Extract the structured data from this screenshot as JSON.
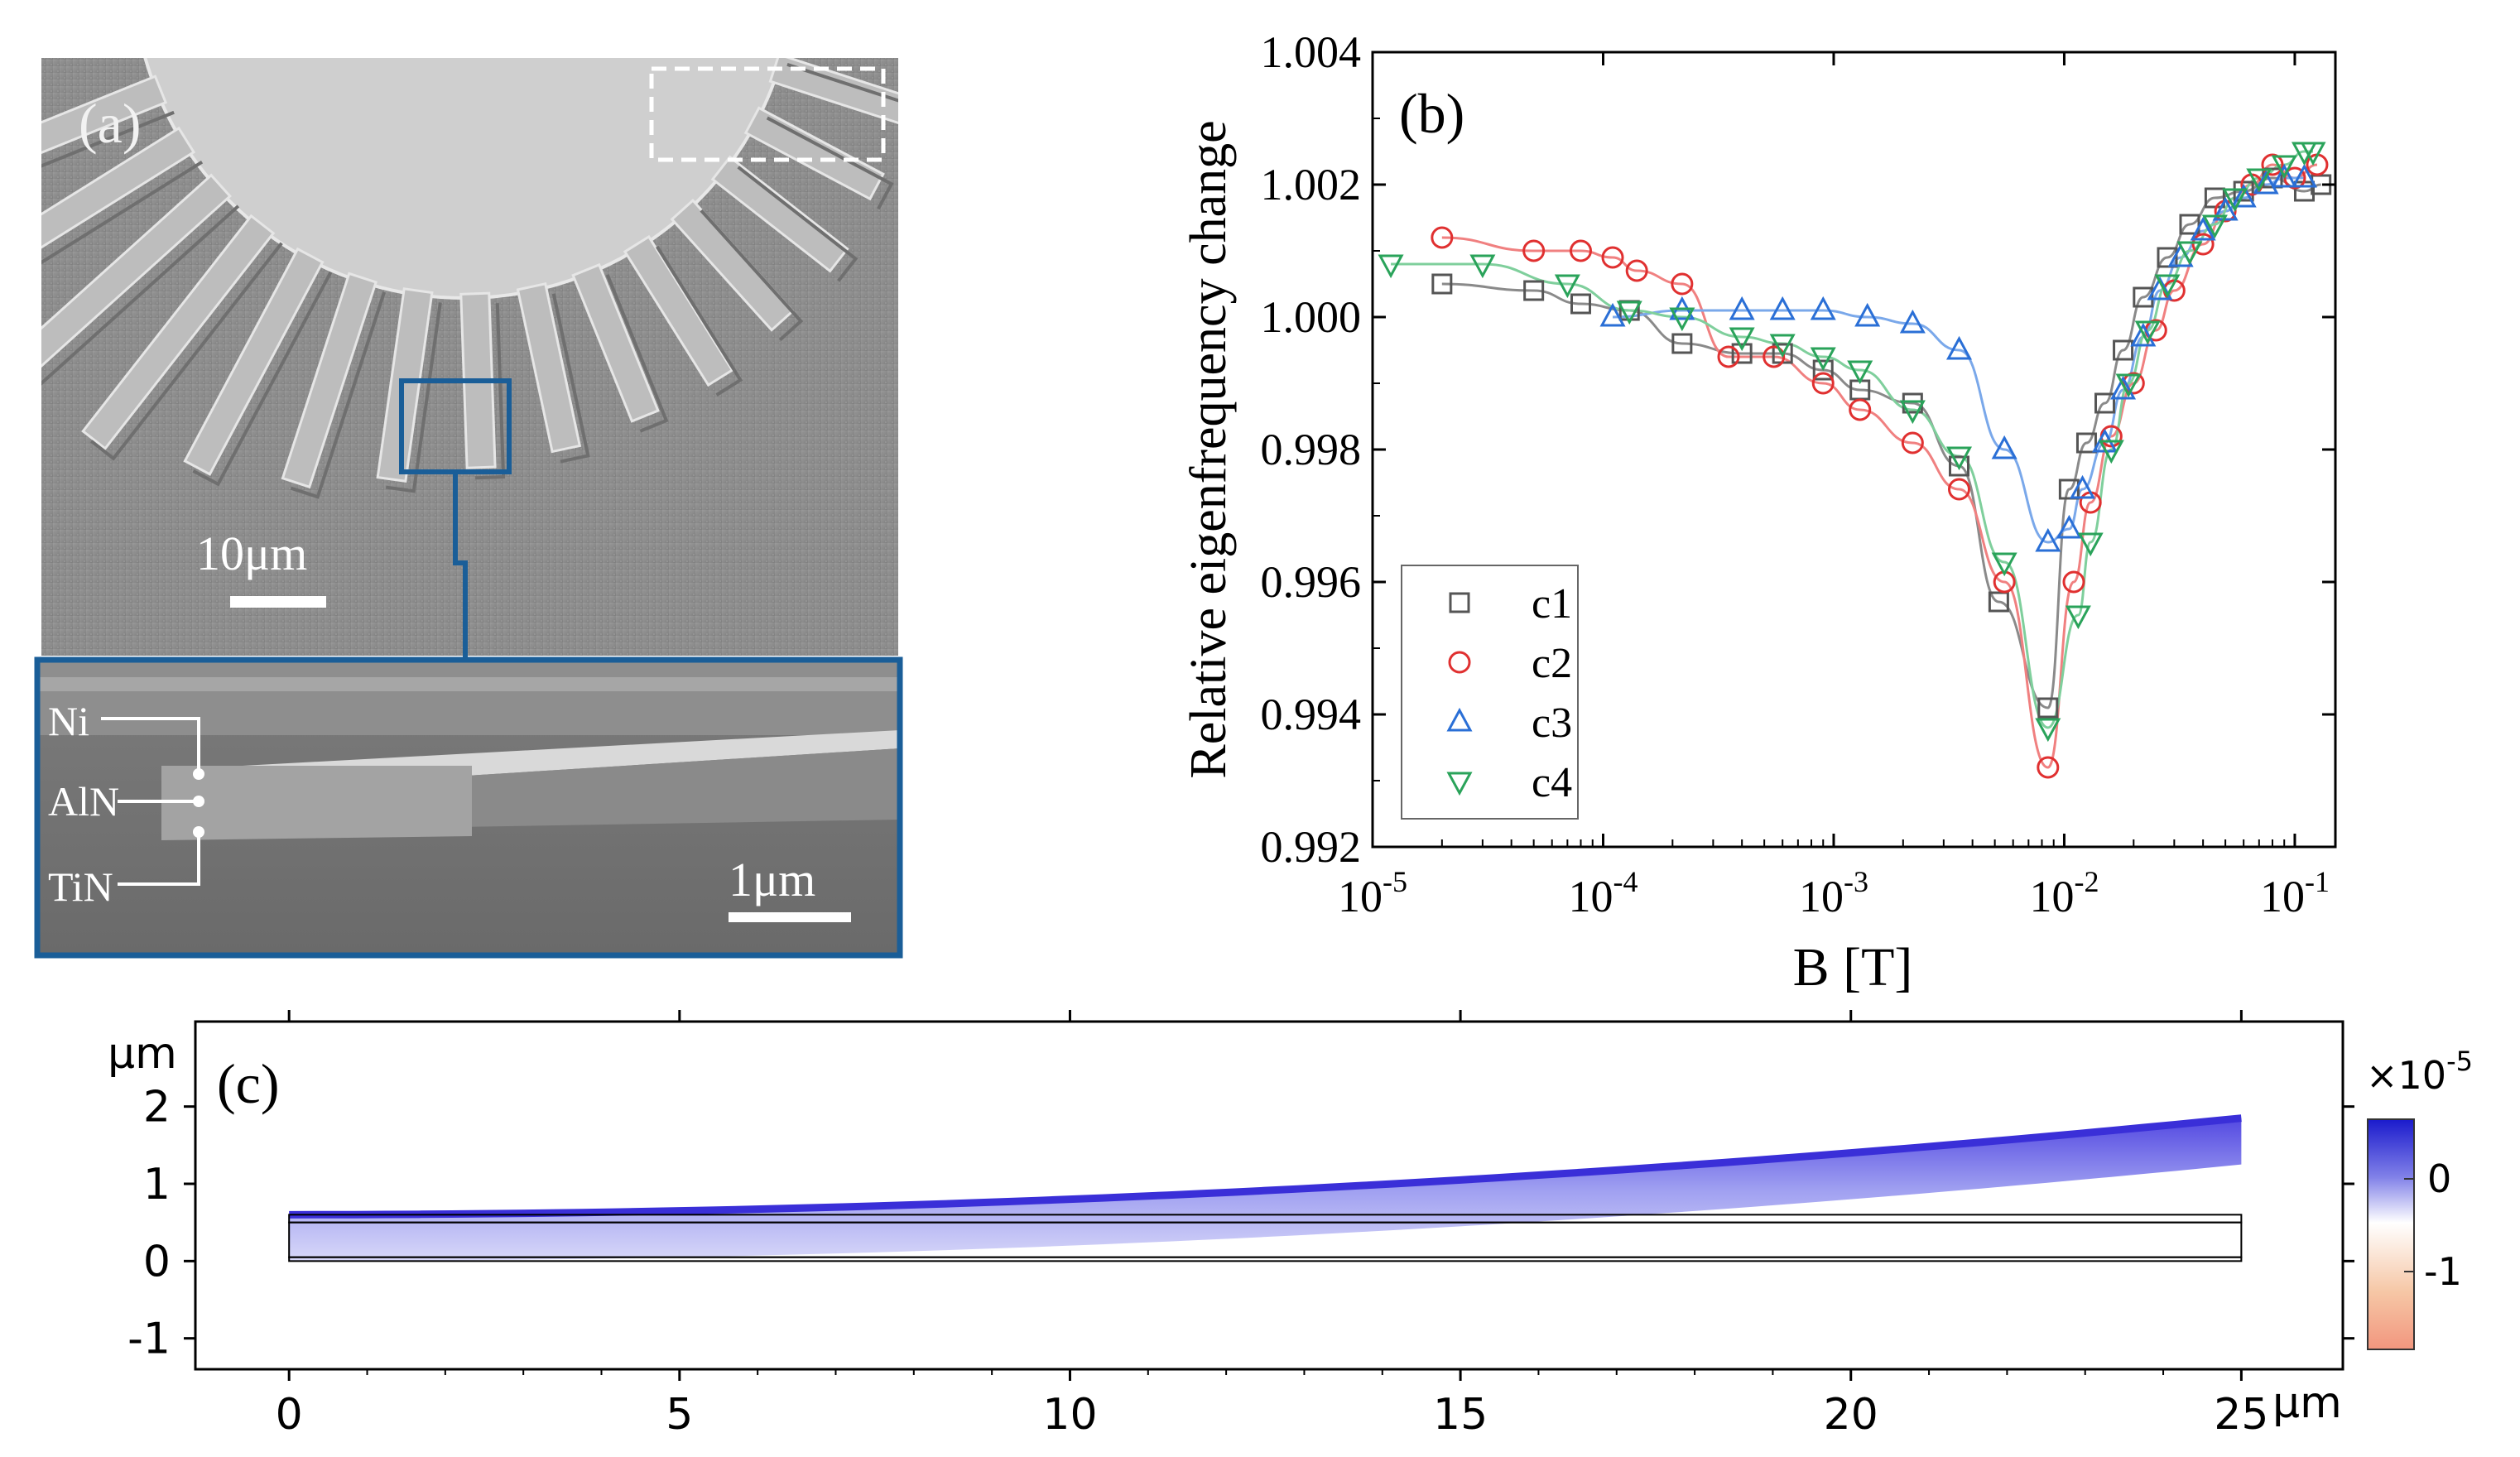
{
  "panel_a": {
    "label": "(a)",
    "scale_main": "10μm",
    "scale_inset": "1μm",
    "layers": [
      "Ni",
      "AlN",
      "TiN"
    ]
  },
  "chart_data": [
    {
      "panel": "(b)",
      "type": "scatter",
      "title": "",
      "xlabel": "B [T]",
      "ylabel": "Relative eigenfrequency change",
      "xscale": "log",
      "xlim": [
        1e-05,
        0.15
      ],
      "ylim": [
        0.992,
        1.004
      ],
      "xticks": [
        {
          "value": 1e-05,
          "base": "10",
          "exp": "-5"
        },
        {
          "value": 0.0001,
          "base": "10",
          "exp": "-4"
        },
        {
          "value": 0.001,
          "base": "10",
          "exp": "-3"
        },
        {
          "value": 0.01,
          "base": "10",
          "exp": "-2"
        },
        {
          "value": 0.1,
          "base": "10",
          "exp": "-1"
        }
      ],
      "yticks": [
        {
          "value": 0.992,
          "label": "0.992"
        },
        {
          "value": 0.994,
          "label": "0.994"
        },
        {
          "value": 0.996,
          "label": "0.996"
        },
        {
          "value": 0.998,
          "label": "0.998"
        },
        {
          "value": 1.0,
          "label": "1.000"
        },
        {
          "value": 1.002,
          "label": "1.002"
        },
        {
          "value": 1.004,
          "label": "1.004"
        }
      ],
      "legend": "bottom-left",
      "series": [
        {
          "name": "c1",
          "marker": "square",
          "color": "#555555",
          "line": "#8a8a8a",
          "x": [
            2e-05,
            5e-05,
            8e-05,
            0.00013,
            0.00022,
            0.0004,
            0.0006,
            0.0009,
            0.0013,
            0.0022,
            0.0035,
            0.0052,
            0.0085,
            0.0105,
            0.0125,
            0.015,
            0.018,
            0.022,
            0.028,
            0.035,
            0.045,
            0.06,
            0.08,
            0.11,
            0.13
          ],
          "y": [
            1.0005,
            1.0004,
            1.0002,
            1.0001,
            0.9996,
            0.99945,
            0.99945,
            0.9992,
            0.9989,
            0.9987,
            0.99775,
            0.9957,
            0.9941,
            0.9974,
            0.9981,
            0.9987,
            0.9995,
            1.0003,
            1.0009,
            1.0014,
            1.0018,
            1.0019,
            1.0021,
            1.0019,
            1.002
          ]
        },
        {
          "name": "c2",
          "marker": "circle",
          "color": "#e03030",
          "line": "#f08080",
          "x": [
            2e-05,
            5e-05,
            8e-05,
            0.00011,
            0.00014,
            0.00022,
            0.00035,
            0.00055,
            0.0009,
            0.0013,
            0.0022,
            0.0035,
            0.0055,
            0.0085,
            0.011,
            0.013,
            0.016,
            0.02,
            0.025,
            0.03,
            0.04,
            0.05,
            0.065,
            0.08,
            0.1,
            0.125
          ],
          "y": [
            1.0012,
            1.001,
            1.001,
            1.0009,
            1.0007,
            1.0005,
            0.9994,
            0.9994,
            0.999,
            0.9986,
            0.9981,
            0.9974,
            0.996,
            0.9932,
            0.996,
            0.9972,
            0.9982,
            0.999,
            0.9998,
            1.0004,
            1.0011,
            1.0016,
            1.002,
            1.0023,
            1.0021,
            1.0023
          ]
        },
        {
          "name": "c3",
          "marker": "triangle-up",
          "color": "#2a6fd6",
          "line": "#7aa8ea",
          "x": [
            0.00011,
            0.00022,
            0.0004,
            0.0006,
            0.0009,
            0.0014,
            0.0022,
            0.0035,
            0.0055,
            0.0085,
            0.0105,
            0.012,
            0.015,
            0.018,
            0.022,
            0.026,
            0.032,
            0.04,
            0.05,
            0.06,
            0.075,
            0.09,
            0.11
          ],
          "y": [
            1.0,
            1.0001,
            1.0001,
            1.0001,
            1.0001,
            1.0,
            0.9999,
            0.9995,
            0.998,
            0.9966,
            0.9968,
            0.9974,
            0.9981,
            0.9989,
            0.9997,
            1.0004,
            1.0009,
            1.0013,
            1.0016,
            1.0018,
            1.002,
            1.0021,
            1.0021
          ]
        },
        {
          "name": "c4",
          "marker": "triangle-down",
          "color": "#2aa35a",
          "line": "#7fcf9c",
          "x": [
            1.2e-05,
            3e-05,
            7e-05,
            0.00013,
            0.00022,
            0.0004,
            0.0006,
            0.0009,
            0.0013,
            0.0022,
            0.0035,
            0.0055,
            0.0085,
            0.0115,
            0.013,
            0.016,
            0.019,
            0.023,
            0.028,
            0.035,
            0.045,
            0.055,
            0.07,
            0.09,
            0.11,
            0.12
          ],
          "y": [
            1.0008,
            1.0008,
            1.0005,
            1.0001,
            1.0,
            0.9997,
            0.9996,
            0.9994,
            0.9992,
            0.9986,
            0.9979,
            0.9963,
            0.9938,
            0.9955,
            0.9966,
            0.998,
            0.999,
            0.9998,
            1.0005,
            1.001,
            1.0014,
            1.0018,
            1.0021,
            1.0023,
            1.0025,
            1.0025
          ]
        }
      ]
    },
    {
      "panel": "(c)",
      "type": "heatmap",
      "title": "",
      "xlabel": "μm",
      "ylabel": "μm",
      "xlim": [
        -1.2,
        26.3
      ],
      "ylim": [
        -1.4,
        3.1
      ],
      "xticks": [
        0,
        5,
        10,
        15,
        20,
        25
      ],
      "yticks": [
        -1,
        0,
        1,
        2
      ],
      "colorbar": {
        "multiplier_base": "×10",
        "multiplier_exp": "-5",
        "ticks": [
          "0",
          "-1"
        ],
        "range": [
          -1.8,
          0.4
        ]
      },
      "beam": {
        "length": 25,
        "layers": [
          0.0,
          0.05,
          0.5,
          0.6
        ]
      },
      "deflection": {
        "tip": 1.25
      }
    }
  ]
}
